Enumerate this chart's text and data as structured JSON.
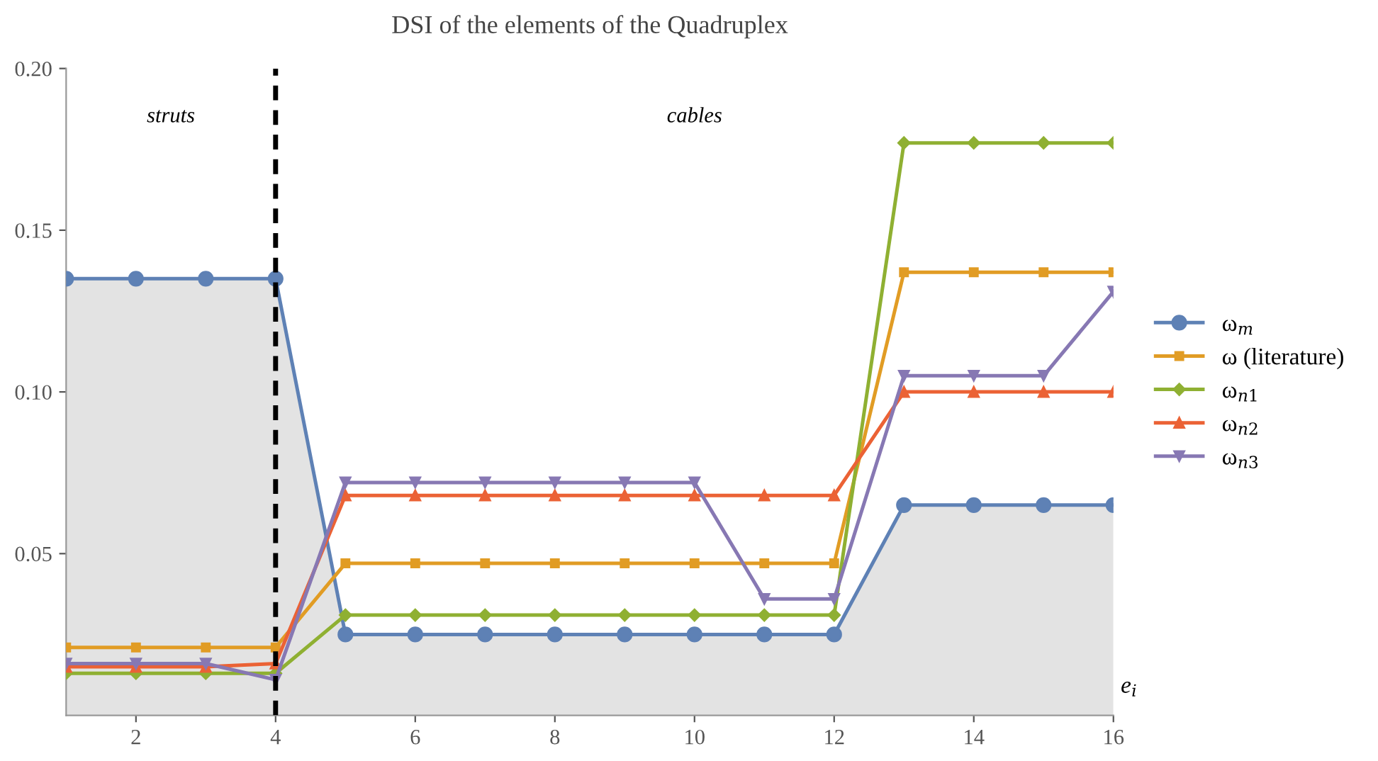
{
  "chart_data": {
    "type": "line",
    "title": "DSI of the elements of the Quadruplex",
    "xlabel": "e$_{i}$",
    "x": [
      1,
      2,
      3,
      4,
      5,
      6,
      7,
      8,
      9,
      10,
      11,
      12,
      13,
      14,
      15,
      16
    ],
    "series": [
      {
        "name": "ω$_{m}$",
        "type": "area",
        "color": "#5e81b5",
        "marker": "circle",
        "values": [
          0.135,
          0.135,
          0.135,
          0.135,
          0.025,
          0.025,
          0.025,
          0.025,
          0.025,
          0.025,
          0.025,
          0.025,
          0.065,
          0.065,
          0.065,
          0.065
        ]
      },
      {
        "name": "ω (literature)",
        "color": "#e19c24",
        "marker": "square",
        "values": [
          0.021,
          0.021,
          0.021,
          0.021,
          0.047,
          0.047,
          0.047,
          0.047,
          0.047,
          0.047,
          0.047,
          0.047,
          0.137,
          0.137,
          0.137,
          0.137
        ]
      },
      {
        "name": "ω$_{n1}$",
        "color": "#8fb032",
        "marker": "diamond",
        "values": [
          0.013,
          0.013,
          0.013,
          0.013,
          0.031,
          0.031,
          0.031,
          0.031,
          0.031,
          0.031,
          0.031,
          0.031,
          0.177,
          0.177,
          0.177,
          0.177
        ]
      },
      {
        "name": "ω$_{n2}$",
        "color": "#eb6235",
        "marker": "triangle",
        "values": [
          0.015,
          0.015,
          0.015,
          0.016,
          0.068,
          0.068,
          0.068,
          0.068,
          0.068,
          0.068,
          0.068,
          0.068,
          0.1,
          0.1,
          0.1,
          0.1
        ]
      },
      {
        "name": "ω$_{n3}$",
        "color": "#8778b3",
        "marker": "triangle_down",
        "values": [
          0.016,
          0.016,
          0.016,
          0.011,
          0.072,
          0.072,
          0.072,
          0.072,
          0.072,
          0.072,
          0.036,
          0.036,
          0.105,
          0.105,
          0.105,
          0.131
        ]
      }
    ],
    "xlim": [
      1,
      16
    ],
    "xticks": [
      2,
      4,
      6,
      8,
      10,
      12,
      14,
      16
    ],
    "ylim": [
      0,
      0.2
    ],
    "yticks": [
      0.05,
      {
        "value": 0.1,
        "label": "0.10"
      },
      0.15,
      {
        "value": 0.2,
        "label": "0.20"
      }
    ],
    "ref_lines": [
      {
        "axis": "x",
        "value": 4,
        "color": "#000000",
        "line_style": "dashed"
      }
    ],
    "annotations": [
      "struts",
      "cables"
    ],
    "legend": "right",
    "grid": false,
    "line_style": "solid"
  }
}
